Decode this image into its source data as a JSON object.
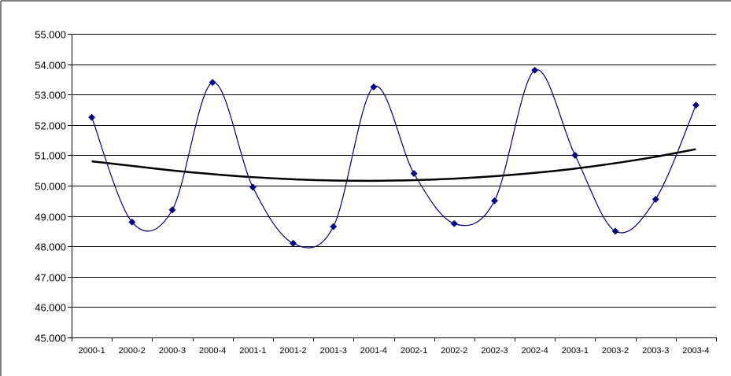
{
  "chart_data": {
    "type": "line",
    "title": "",
    "xlabel": "",
    "ylabel": "",
    "categories": [
      "2000-1",
      "2000-2",
      "2000-3",
      "2000-4",
      "2001-1",
      "2001-2",
      "2001-3",
      "2001-4",
      "2002-1",
      "2002-2",
      "2002-3",
      "2002-4",
      "2003-1",
      "2003-2",
      "2003-3",
      "2003-4"
    ],
    "y_tick_labels": [
      "45.000",
      "46.000",
      "47.000",
      "48.000",
      "49.000",
      "50.000",
      "51.000",
      "52.000",
      "53.000",
      "54.000",
      "55.000"
    ],
    "ylim": [
      45000,
      55000
    ],
    "grid": true,
    "legend": "none",
    "series": [
      {
        "values": [
          52250,
          48800,
          49200,
          53400,
          49950,
          48100,
          48650,
          53250,
          50400,
          48750,
          49500,
          53800,
          51000,
          48500,
          49550,
          52650
        ],
        "color": "#000080",
        "marker": "diamond",
        "smooth": true
      },
      {
        "values": [
          50800,
          50650,
          50500,
          50380,
          50280,
          50210,
          50170,
          50160,
          50180,
          50230,
          50310,
          50420,
          50560,
          50740,
          50950,
          51200
        ],
        "color": "#000000",
        "marker": "none",
        "smooth": true,
        "trendline": true
      }
    ]
  }
}
